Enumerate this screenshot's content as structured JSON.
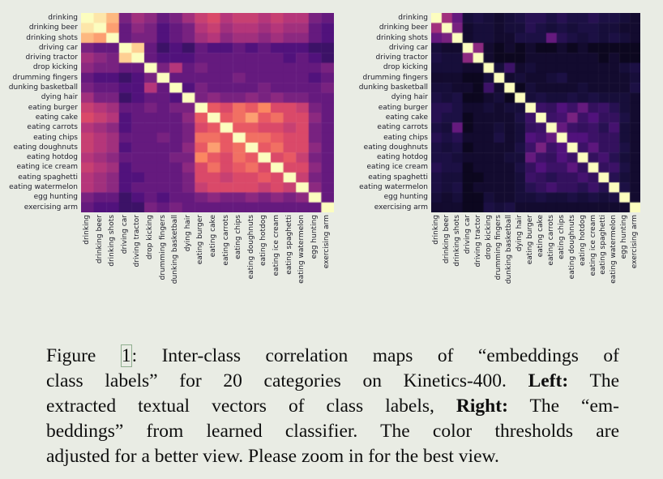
{
  "page": {
    "background": "#e9ece4"
  },
  "colors": {
    "background": "#e9ece4",
    "tick_label": "#1c1c28",
    "caption_text": "#0e0e0e",
    "figure_ref_box": "#8fae8f",
    "colormap_stops": [
      "#000004",
      "#1d1147",
      "#51127c",
      "#822681",
      "#b5367a",
      "#e34e65",
      "#fb8761",
      "#fec488",
      "#fcfdbf"
    ]
  },
  "caption": {
    "l1a": "Figure ",
    "l1link": "1",
    "l1b": ": Inter-class correlation maps of “embeddings of",
    "l2a": "class labels” for 20 categories on Kinetics-400. ",
    "l2bold": "Left:",
    "l2b": " The",
    "l3a": "extracted textual vectors of class labels, ",
    "l3bold": "Right:",
    "l3b": " The “em-",
    "l4": "beddings” from learned classifier. The color thresholds are",
    "l5": "adjusted for a better view. Please zoom in for the best view."
  },
  "chart_data": [
    {
      "position": "left",
      "type": "heatmap",
      "title": "",
      "colormap": "magma",
      "value_range": [
        0,
        1
      ],
      "categories": [
        "drinking",
        "drinking beer",
        "drinking shots",
        "driving car",
        "driving tractor",
        "drop kicking",
        "drumming fingers",
        "dunking basketball",
        "dying hair",
        "eating burger",
        "eating cake",
        "eating carrots",
        "eating chips",
        "eating doughnuts",
        "eating hotdog",
        "eating ice cream",
        "eating spaghetti",
        "eating watermelon",
        "egg hunting",
        "exercising arm"
      ],
      "matrix": [
        [
          1.0,
          0.95,
          0.85,
          0.35,
          0.45,
          0.4,
          0.3,
          0.35,
          0.45,
          0.55,
          0.6,
          0.5,
          0.55,
          0.55,
          0.5,
          0.55,
          0.5,
          0.5,
          0.35,
          0.3
        ],
        [
          0.95,
          1.0,
          0.8,
          0.3,
          0.4,
          0.35,
          0.25,
          0.3,
          0.35,
          0.5,
          0.55,
          0.45,
          0.5,
          0.5,
          0.45,
          0.5,
          0.45,
          0.45,
          0.3,
          0.25
        ],
        [
          0.85,
          0.8,
          1.0,
          0.3,
          0.35,
          0.35,
          0.25,
          0.3,
          0.35,
          0.45,
          0.5,
          0.4,
          0.45,
          0.45,
          0.4,
          0.45,
          0.4,
          0.4,
          0.3,
          0.25
        ],
        [
          0.35,
          0.3,
          0.3,
          1.0,
          0.9,
          0.3,
          0.2,
          0.25,
          0.2,
          0.3,
          0.25,
          0.25,
          0.3,
          0.25,
          0.3,
          0.25,
          0.25,
          0.25,
          0.2,
          0.2
        ],
        [
          0.45,
          0.4,
          0.35,
          0.9,
          1.0,
          0.3,
          0.25,
          0.25,
          0.25,
          0.3,
          0.3,
          0.3,
          0.3,
          0.3,
          0.3,
          0.3,
          0.25,
          0.3,
          0.25,
          0.2
        ],
        [
          0.4,
          0.35,
          0.35,
          0.3,
          0.3,
          1.0,
          0.35,
          0.5,
          0.3,
          0.35,
          0.3,
          0.3,
          0.3,
          0.3,
          0.3,
          0.3,
          0.3,
          0.3,
          0.3,
          0.35
        ],
        [
          0.3,
          0.25,
          0.25,
          0.2,
          0.25,
          0.35,
          1.0,
          0.3,
          0.3,
          0.3,
          0.3,
          0.3,
          0.35,
          0.3,
          0.3,
          0.3,
          0.3,
          0.3,
          0.25,
          0.3
        ],
        [
          0.35,
          0.3,
          0.3,
          0.25,
          0.25,
          0.5,
          0.3,
          1.0,
          0.25,
          0.35,
          0.3,
          0.3,
          0.3,
          0.3,
          0.35,
          0.3,
          0.3,
          0.3,
          0.3,
          0.35
        ],
        [
          0.45,
          0.35,
          0.35,
          0.2,
          0.25,
          0.3,
          0.3,
          0.25,
          1.0,
          0.35,
          0.4,
          0.35,
          0.35,
          0.4,
          0.35,
          0.4,
          0.35,
          0.35,
          0.3,
          0.3
        ],
        [
          0.55,
          0.5,
          0.45,
          0.3,
          0.3,
          0.35,
          0.3,
          0.35,
          0.35,
          1.0,
          0.65,
          0.6,
          0.7,
          0.65,
          0.75,
          0.6,
          0.6,
          0.55,
          0.35,
          0.3
        ],
        [
          0.6,
          0.55,
          0.5,
          0.25,
          0.3,
          0.3,
          0.3,
          0.3,
          0.4,
          0.65,
          1.0,
          0.65,
          0.7,
          0.8,
          0.65,
          0.7,
          0.6,
          0.6,
          0.4,
          0.3
        ],
        [
          0.5,
          0.45,
          0.4,
          0.25,
          0.3,
          0.3,
          0.3,
          0.3,
          0.35,
          0.6,
          0.65,
          1.0,
          0.65,
          0.65,
          0.6,
          0.6,
          0.55,
          0.6,
          0.35,
          0.3
        ],
        [
          0.55,
          0.5,
          0.45,
          0.3,
          0.3,
          0.3,
          0.35,
          0.3,
          0.35,
          0.7,
          0.7,
          0.65,
          1.0,
          0.7,
          0.7,
          0.65,
          0.6,
          0.6,
          0.35,
          0.3
        ],
        [
          0.55,
          0.5,
          0.45,
          0.25,
          0.3,
          0.3,
          0.3,
          0.3,
          0.4,
          0.65,
          0.8,
          0.65,
          0.7,
          1.0,
          0.65,
          0.7,
          0.6,
          0.6,
          0.4,
          0.3
        ],
        [
          0.5,
          0.45,
          0.4,
          0.3,
          0.3,
          0.3,
          0.3,
          0.35,
          0.35,
          0.75,
          0.65,
          0.6,
          0.7,
          0.65,
          1.0,
          0.6,
          0.65,
          0.55,
          0.35,
          0.3
        ],
        [
          0.55,
          0.5,
          0.45,
          0.25,
          0.3,
          0.3,
          0.3,
          0.3,
          0.4,
          0.6,
          0.7,
          0.6,
          0.65,
          0.7,
          0.6,
          1.0,
          0.6,
          0.6,
          0.4,
          0.3
        ],
        [
          0.5,
          0.45,
          0.4,
          0.25,
          0.25,
          0.3,
          0.3,
          0.3,
          0.35,
          0.6,
          0.6,
          0.55,
          0.6,
          0.6,
          0.65,
          0.6,
          1.0,
          0.55,
          0.35,
          0.3
        ],
        [
          0.5,
          0.45,
          0.4,
          0.25,
          0.3,
          0.3,
          0.3,
          0.3,
          0.35,
          0.55,
          0.6,
          0.6,
          0.6,
          0.6,
          0.55,
          0.6,
          0.55,
          1.0,
          0.4,
          0.3
        ],
        [
          0.35,
          0.3,
          0.3,
          0.2,
          0.25,
          0.3,
          0.25,
          0.3,
          0.3,
          0.35,
          0.4,
          0.35,
          0.35,
          0.4,
          0.35,
          0.4,
          0.35,
          0.4,
          1.0,
          0.3
        ],
        [
          0.3,
          0.25,
          0.25,
          0.2,
          0.2,
          0.35,
          0.3,
          0.35,
          0.3,
          0.3,
          0.3,
          0.3,
          0.3,
          0.3,
          0.3,
          0.3,
          0.3,
          0.3,
          0.3,
          1.0
        ]
      ]
    },
    {
      "position": "right",
      "type": "heatmap",
      "title": "",
      "colormap": "magma",
      "value_range": [
        0,
        1
      ],
      "categories": [
        "drinking",
        "drinking beer",
        "drinking shots",
        "driving car",
        "driving tractor",
        "drop kicking",
        "drumming fingers",
        "dunking basketball",
        "dying hair",
        "eating burger",
        "eating cake",
        "eating carrots",
        "eating chips",
        "eating doughnuts",
        "eating hotdog",
        "eating ice cream",
        "eating spaghetti",
        "eating watermelon",
        "egg hunting",
        "exercising arm"
      ],
      "matrix": [
        [
          1.0,
          0.45,
          0.3,
          0.1,
          0.12,
          0.1,
          0.08,
          0.1,
          0.12,
          0.15,
          0.15,
          0.12,
          0.15,
          0.12,
          0.12,
          0.15,
          0.12,
          0.12,
          0.1,
          0.08
        ],
        [
          0.45,
          1.0,
          0.35,
          0.08,
          0.1,
          0.1,
          0.08,
          0.1,
          0.1,
          0.15,
          0.12,
          0.1,
          0.12,
          0.1,
          0.12,
          0.12,
          0.1,
          0.1,
          0.08,
          0.08
        ],
        [
          0.3,
          0.35,
          1.0,
          0.08,
          0.1,
          0.1,
          0.08,
          0.08,
          0.12,
          0.12,
          0.12,
          0.3,
          0.15,
          0.12,
          0.1,
          0.12,
          0.1,
          0.12,
          0.1,
          0.08
        ],
        [
          0.1,
          0.08,
          0.08,
          1.0,
          0.4,
          0.08,
          0.05,
          0.08,
          0.05,
          0.08,
          0.05,
          0.05,
          0.08,
          0.05,
          0.08,
          0.05,
          0.05,
          0.05,
          0.05,
          0.05
        ],
        [
          0.12,
          0.1,
          0.1,
          0.4,
          1.0,
          0.08,
          0.05,
          0.05,
          0.05,
          0.08,
          0.08,
          0.08,
          0.08,
          0.08,
          0.08,
          0.08,
          0.05,
          0.08,
          0.05,
          0.05
        ],
        [
          0.1,
          0.1,
          0.1,
          0.08,
          0.08,
          1.0,
          0.1,
          0.2,
          0.08,
          0.1,
          0.08,
          0.08,
          0.08,
          0.08,
          0.08,
          0.08,
          0.08,
          0.08,
          0.1,
          0.12
        ],
        [
          0.08,
          0.08,
          0.08,
          0.05,
          0.05,
          0.1,
          1.0,
          0.08,
          0.1,
          0.08,
          0.08,
          0.1,
          0.12,
          0.08,
          0.08,
          0.08,
          0.08,
          0.08,
          0.08,
          0.1
        ],
        [
          0.1,
          0.1,
          0.08,
          0.08,
          0.05,
          0.2,
          0.08,
          1.0,
          0.05,
          0.1,
          0.08,
          0.08,
          0.08,
          0.08,
          0.1,
          0.08,
          0.08,
          0.08,
          0.08,
          0.12
        ],
        [
          0.12,
          0.1,
          0.12,
          0.05,
          0.05,
          0.08,
          0.1,
          0.05,
          1.0,
          0.1,
          0.12,
          0.1,
          0.1,
          0.12,
          0.1,
          0.12,
          0.1,
          0.1,
          0.1,
          0.08
        ],
        [
          0.15,
          0.15,
          0.12,
          0.08,
          0.08,
          0.1,
          0.08,
          0.1,
          0.1,
          1.0,
          0.2,
          0.18,
          0.25,
          0.2,
          0.3,
          0.18,
          0.2,
          0.15,
          0.1,
          0.08
        ],
        [
          0.15,
          0.12,
          0.12,
          0.05,
          0.08,
          0.08,
          0.08,
          0.08,
          0.12,
          0.2,
          1.0,
          0.2,
          0.22,
          0.35,
          0.2,
          0.25,
          0.18,
          0.18,
          0.12,
          0.08
        ],
        [
          0.12,
          0.1,
          0.3,
          0.05,
          0.08,
          0.08,
          0.1,
          0.08,
          0.1,
          0.18,
          0.2,
          1.0,
          0.3,
          0.2,
          0.18,
          0.2,
          0.15,
          0.22,
          0.1,
          0.08
        ],
        [
          0.15,
          0.12,
          0.15,
          0.08,
          0.08,
          0.08,
          0.12,
          0.08,
          0.1,
          0.25,
          0.22,
          0.3,
          1.0,
          0.25,
          0.25,
          0.2,
          0.18,
          0.18,
          0.1,
          0.08
        ],
        [
          0.12,
          0.1,
          0.12,
          0.05,
          0.08,
          0.08,
          0.08,
          0.08,
          0.12,
          0.2,
          0.35,
          0.2,
          0.25,
          1.0,
          0.2,
          0.28,
          0.18,
          0.18,
          0.12,
          0.08
        ],
        [
          0.12,
          0.12,
          0.1,
          0.08,
          0.08,
          0.08,
          0.08,
          0.1,
          0.1,
          0.3,
          0.2,
          0.18,
          0.25,
          0.2,
          1.0,
          0.18,
          0.22,
          0.15,
          0.1,
          0.08
        ],
        [
          0.15,
          0.12,
          0.12,
          0.05,
          0.08,
          0.08,
          0.08,
          0.08,
          0.12,
          0.18,
          0.25,
          0.2,
          0.2,
          0.28,
          0.18,
          1.0,
          0.18,
          0.2,
          0.12,
          0.08
        ],
        [
          0.12,
          0.1,
          0.1,
          0.05,
          0.05,
          0.08,
          0.08,
          0.08,
          0.1,
          0.2,
          0.18,
          0.15,
          0.18,
          0.18,
          0.22,
          0.18,
          1.0,
          0.15,
          0.1,
          0.08
        ],
        [
          0.12,
          0.1,
          0.12,
          0.05,
          0.08,
          0.08,
          0.08,
          0.08,
          0.1,
          0.15,
          0.18,
          0.22,
          0.18,
          0.18,
          0.15,
          0.2,
          0.15,
          1.0,
          0.12,
          0.08
        ],
        [
          0.1,
          0.08,
          0.1,
          0.05,
          0.05,
          0.1,
          0.08,
          0.08,
          0.1,
          0.1,
          0.12,
          0.1,
          0.1,
          0.12,
          0.1,
          0.12,
          0.1,
          0.12,
          1.0,
          0.08
        ],
        [
          0.08,
          0.08,
          0.08,
          0.05,
          0.05,
          0.12,
          0.1,
          0.12,
          0.08,
          0.08,
          0.08,
          0.08,
          0.08,
          0.08,
          0.08,
          0.08,
          0.08,
          0.08,
          0.08,
          1.0
        ]
      ]
    }
  ]
}
